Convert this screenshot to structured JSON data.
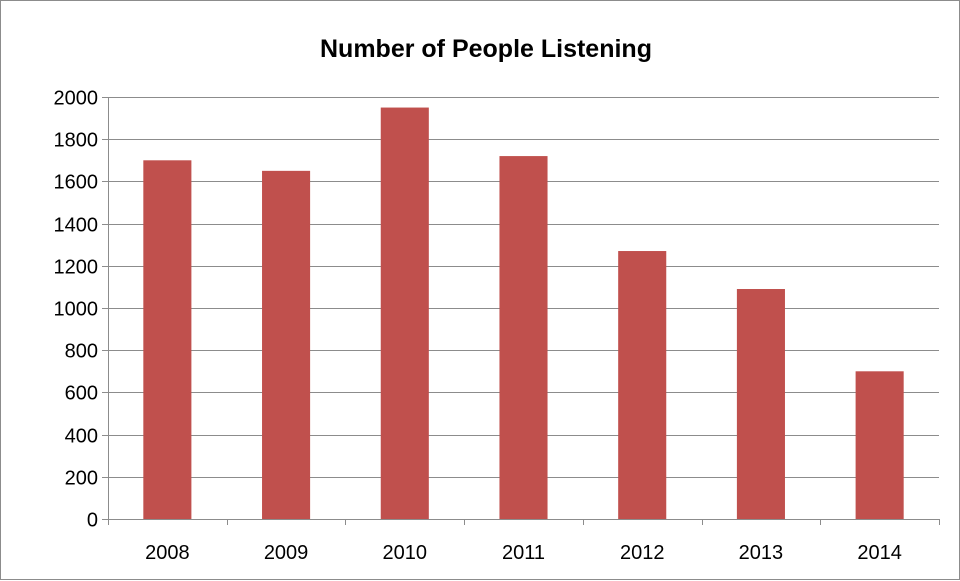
{
  "chart_data": {
    "type": "bar",
    "title": "Number of People Listening",
    "xlabel": "",
    "ylabel": "",
    "categories": [
      "2008",
      "2009",
      "2010",
      "2011",
      "2012",
      "2013",
      "2014"
    ],
    "values": [
      1700,
      1650,
      1950,
      1720,
      1270,
      1090,
      700
    ],
    "ylim": [
      0,
      2000
    ],
    "yticks": [
      0,
      200,
      400,
      600,
      800,
      1000,
      1200,
      1400,
      1600,
      1800,
      2000
    ],
    "grid": true,
    "legend": "none",
    "bar_color": "#c0504d",
    "gridline_color": "#8c8c8c"
  }
}
